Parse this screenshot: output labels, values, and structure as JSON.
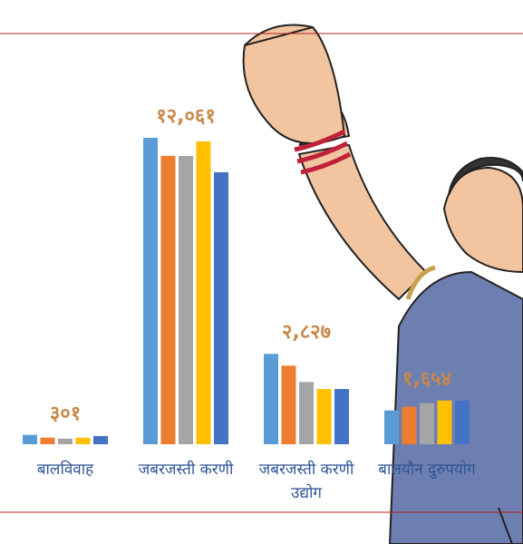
{
  "chart_data": {
    "type": "bar",
    "categories": [
      "बालविवाह",
      "जबरजस्ती करणी",
      "जबरजस्ती करणी उद्योग",
      "बालयौन दुरुपयोग"
    ],
    "series": [
      {
        "color": "#5b9bd5",
        "values": [
          78,
          2535,
          748,
          280
        ]
      },
      {
        "color": "#ed7d31",
        "values": [
          55,
          2386,
          650,
          310
        ]
      },
      {
        "color": "#a5a5a5",
        "values": [
          46,
          2385,
          515,
          340
        ]
      },
      {
        "color": "#ffc000",
        "values": [
          54,
          2505,
          457,
          362
        ]
      },
      {
        "color": "#4472c4",
        "values": [
          68,
          2250,
          457,
          362
        ]
      }
    ],
    "totals": [
      301,
      12061,
      2827,
      1654
    ],
    "total_labels": [
      "३०१",
      "१२,०६१",
      "२,८२७",
      "१,६५४"
    ],
    "ylim": [
      0,
      2550
    ]
  }
}
